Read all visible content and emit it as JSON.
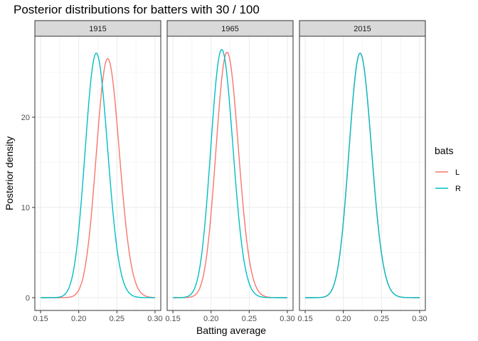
{
  "chart_data": {
    "type": "line",
    "title": "Posterior distributions for batters with 30 / 100",
    "xlabel": "Batting average",
    "ylabel": "Posterior density",
    "xlim": [
      0.15,
      0.3
    ],
    "ylim": [
      0,
      28
    ],
    "x_ticks": [
      0.15,
      0.2,
      0.25,
      0.3
    ],
    "x_tick_labels": [
      "0.15",
      "0.20",
      "0.25",
      "0.30"
    ],
    "y_ticks": [
      0,
      10,
      20
    ],
    "y_tick_labels": [
      "0",
      "10",
      "20"
    ],
    "grid": true,
    "legend": {
      "title": "bats",
      "position": "right",
      "entries": [
        {
          "label": "L",
          "color": "#F8766D"
        },
        {
          "label": "R",
          "color": "#00BFC4"
        }
      ]
    },
    "panels": [
      {
        "label": "1915",
        "series": [
          {
            "name": "L",
            "color": "#F8766D",
            "peak_x": 0.238,
            "peak_y": 26.5
          },
          {
            "name": "R",
            "color": "#00BFC4",
            "peak_x": 0.223,
            "peak_y": 27.1
          }
        ]
      },
      {
        "label": "1965",
        "series": [
          {
            "name": "L",
            "color": "#F8766D",
            "peak_x": 0.221,
            "peak_y": 27.2
          },
          {
            "name": "R",
            "color": "#00BFC4",
            "peak_x": 0.214,
            "peak_y": 27.5
          }
        ]
      },
      {
        "label": "2015",
        "series": [
          {
            "name": "L",
            "color": "#F8766D",
            "peak_x": 0.222,
            "peak_y": 27.1
          },
          {
            "name": "R",
            "color": "#00BFC4",
            "peak_x": 0.222,
            "peak_y": 27.1
          }
        ]
      }
    ]
  }
}
